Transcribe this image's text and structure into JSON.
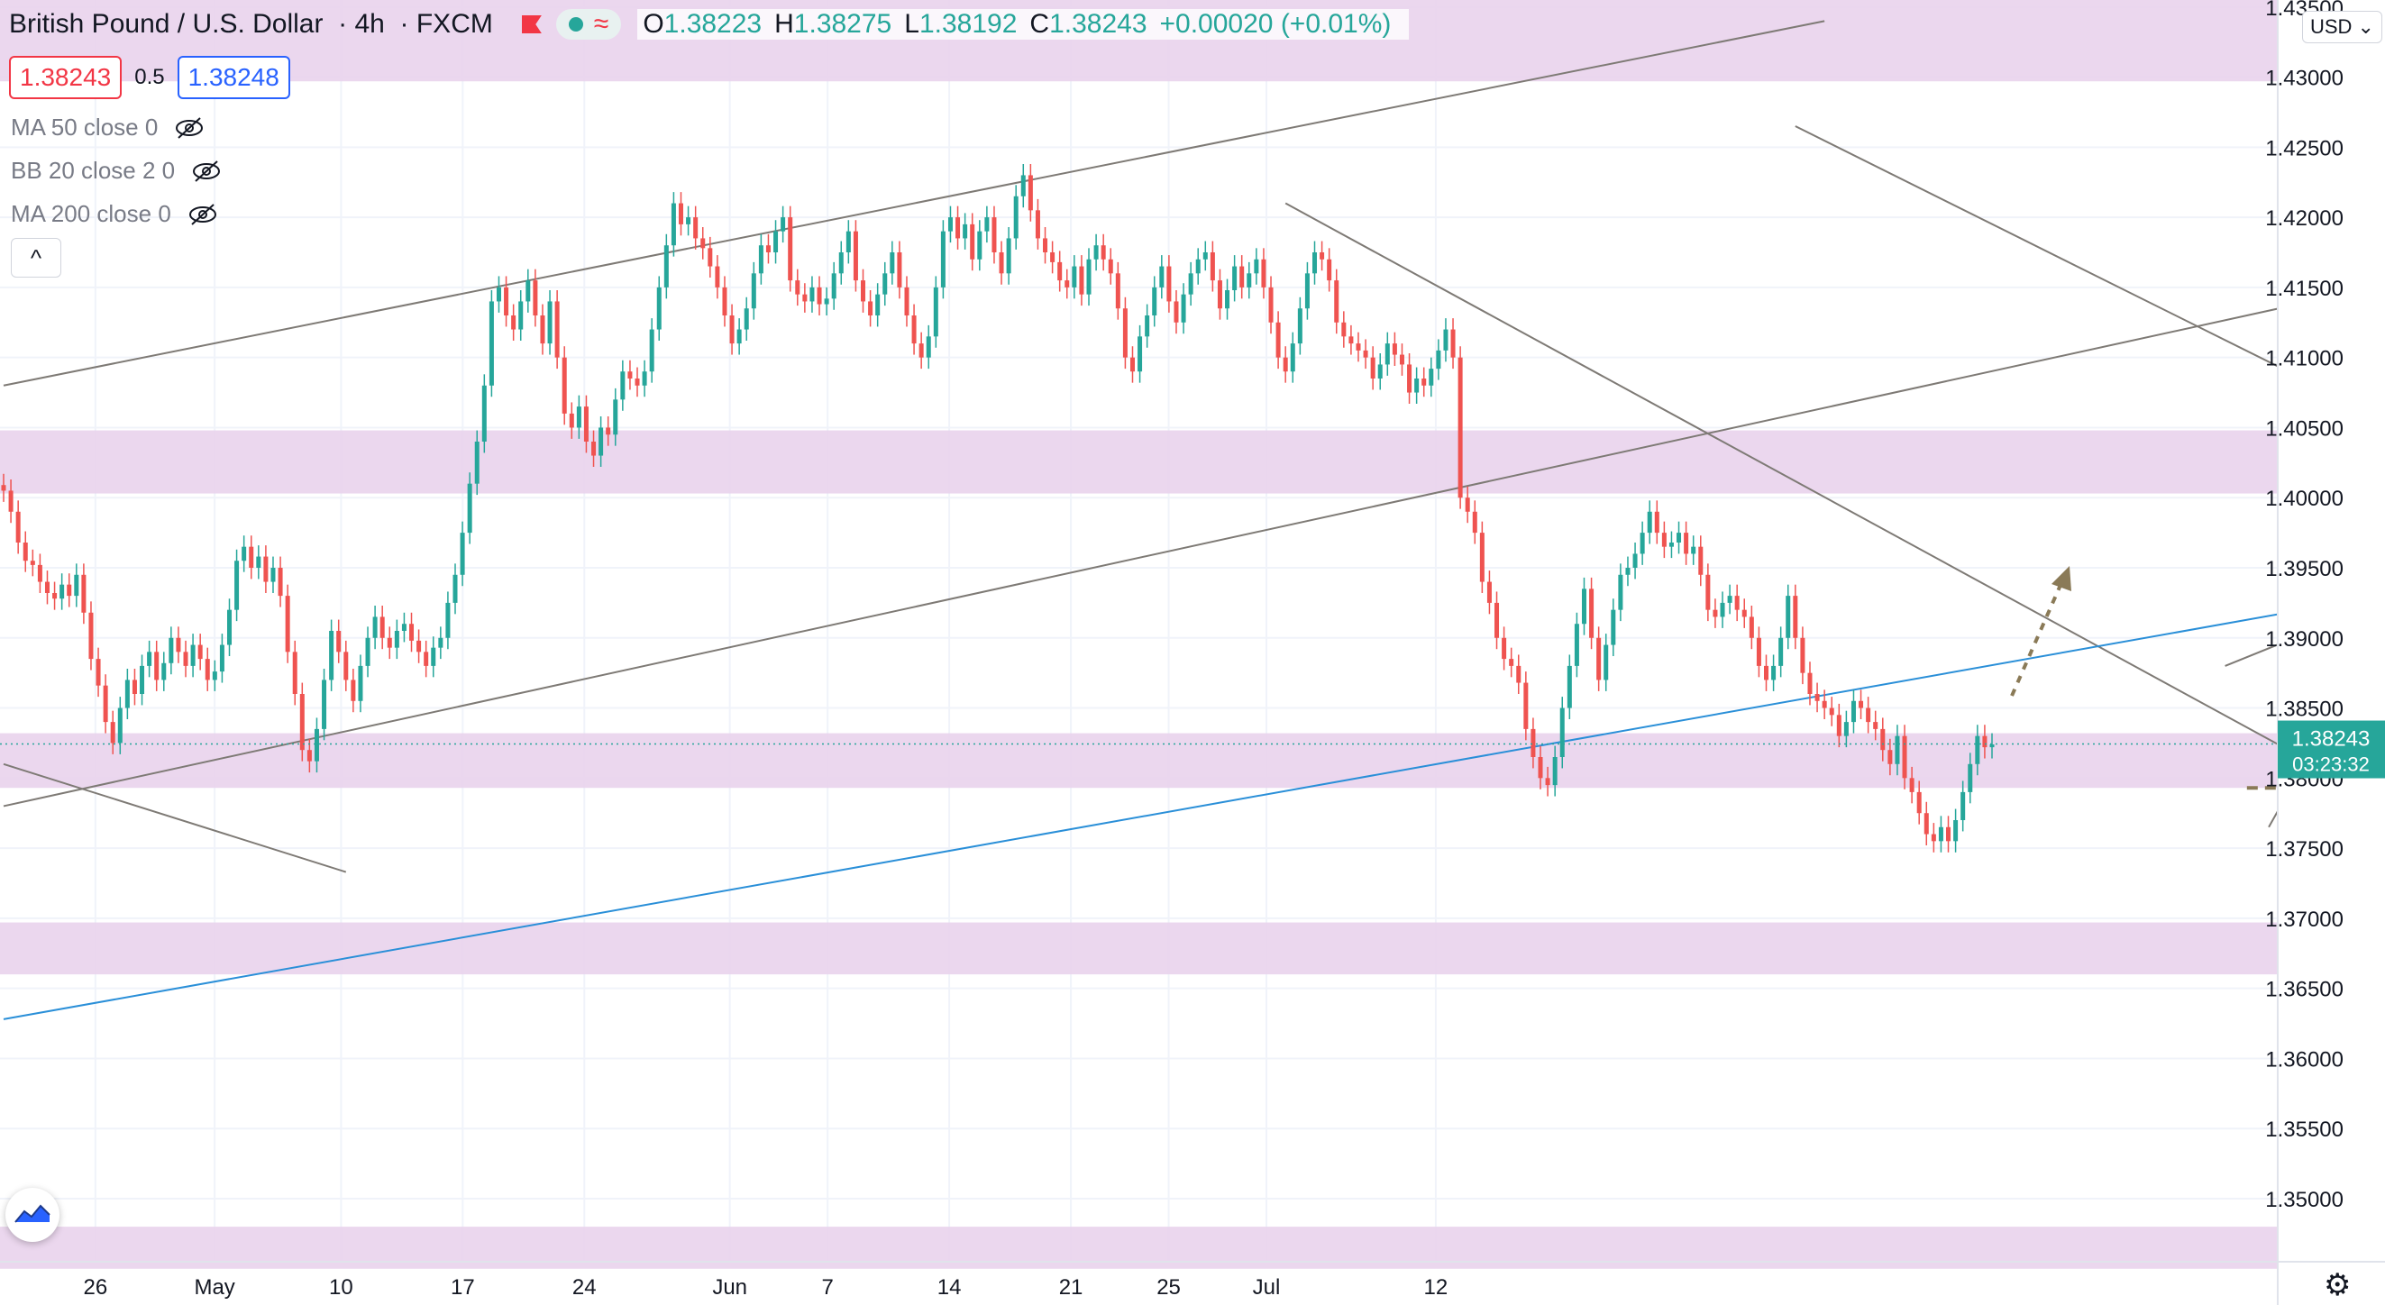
{
  "legend": {
    "symbol": "British Pound / U.S. Dollar",
    "interval": "4h",
    "source": "FXCM",
    "ohlc": [
      {
        "k": "O",
        "v": "1.38223"
      },
      {
        "k": "H",
        "v": "1.38275"
      },
      {
        "k": "L",
        "v": "1.38192"
      },
      {
        "k": "C",
        "v": "1.38243"
      },
      {
        "k": "",
        "v": "+0.00020 (+0.01%)"
      }
    ]
  },
  "prices": {
    "sell": "1.38243",
    "spread": "0.5",
    "buy": "1.38248"
  },
  "indicators": [
    "MA 50 close 0",
    "BB 20 close 2 0",
    "MA 200 close 0"
  ],
  "currency_label": "USD ⌄",
  "collapse_label": "^",
  "colors": {
    "up": "#26a69a",
    "down": "#ef5350",
    "zone": "#e9d3ec",
    "trend": "#7e7a75",
    "blue_line": "#2a8fd8",
    "target": "#8a7a57"
  },
  "chart_data": {
    "type": "candlestick",
    "ylim": [
      1.3455,
      1.4355
    ],
    "y_ticks": [
      "1.43500",
      "1.43000",
      "1.42500",
      "1.42000",
      "1.41500",
      "1.41000",
      "1.40500",
      "1.40000",
      "1.39500",
      "1.39000",
      "1.38500",
      "1.38000",
      "1.37500",
      "1.37000",
      "1.36500",
      "1.36000",
      "1.35500",
      "1.35000"
    ],
    "x_labels": [
      "26",
      "May",
      "10",
      "17",
      "24",
      "Jun",
      "7",
      "14",
      "21",
      "25",
      "Jul",
      "12"
    ],
    "last_price": "1.38243",
    "countdown": "03:23:32",
    "zones": [
      [
        1.4297,
        1.4355
      ],
      [
        1.4003,
        1.4048
      ],
      [
        1.3793,
        1.3832
      ],
      [
        1.366,
        1.3697
      ],
      [
        1.345,
        1.348
      ]
    ],
    "candles_close": [
      1.4005,
      1.399,
      1.3968,
      1.3955,
      1.3952,
      1.394,
      1.3932,
      1.3928,
      1.3938,
      1.393,
      1.3945,
      1.3918,
      1.3885,
      1.3866,
      1.384,
      1.3825,
      1.385,
      1.387,
      1.386,
      1.388,
      1.389,
      1.387,
      1.3882,
      1.39,
      1.389,
      1.388,
      1.3895,
      1.3885,
      1.387,
      1.3876,
      1.3895,
      1.392,
      1.3955,
      1.3965,
      1.395,
      1.3958,
      1.394,
      1.395,
      1.393,
      1.389,
      1.386,
      1.382,
      1.3812,
      1.3835,
      1.387,
      1.3905,
      1.389,
      1.387,
      1.3855,
      1.388,
      1.39,
      1.3915,
      1.39,
      1.3893,
      1.3905,
      1.391,
      1.3898,
      1.389,
      1.388,
      1.3893,
      1.39,
      1.3925,
      1.3945,
      1.3975,
      1.401,
      1.404,
      1.408,
      1.414,
      1.415,
      1.413,
      1.412,
      1.414,
      1.4155,
      1.413,
      1.411,
      1.414,
      1.41,
      1.406,
      1.405,
      1.4065,
      1.404,
      1.403,
      1.405,
      1.4045,
      1.407,
      1.409,
      1.4085,
      1.408,
      1.409,
      1.412,
      1.415,
      1.418,
      1.421,
      1.4195,
      1.42,
      1.4185,
      1.4178,
      1.4165,
      1.415,
      1.413,
      1.411,
      1.412,
      1.4135,
      1.416,
      1.418,
      1.4175,
      1.419,
      1.42,
      1.4155,
      1.4145,
      1.414,
      1.415,
      1.4138,
      1.4142,
      1.416,
      1.4175,
      1.419,
      1.4155,
      1.414,
      1.413,
      1.4145,
      1.416,
      1.4175,
      1.415,
      1.413,
      1.411,
      1.41,
      1.4115,
      1.415,
      1.419,
      1.42,
      1.4185,
      1.4195,
      1.417,
      1.419,
      1.42,
      1.4175,
      1.416,
      1.4185,
      1.4215,
      1.423,
      1.4205,
      1.4185,
      1.4175,
      1.4168,
      1.4155,
      1.415,
      1.4165,
      1.4145,
      1.417,
      1.418,
      1.417,
      1.416,
      1.4135,
      1.41,
      1.409,
      1.4115,
      1.413,
      1.415,
      1.4165,
      1.414,
      1.4125,
      1.4145,
      1.416,
      1.417,
      1.4175,
      1.4155,
      1.4135,
      1.4148,
      1.4165,
      1.415,
      1.416,
      1.417,
      1.415,
      1.4125,
      1.41,
      1.409,
      1.411,
      1.4135,
      1.416,
      1.4175,
      1.417,
      1.4155,
      1.4125,
      1.4115,
      1.411,
      1.4105,
      1.41,
      1.4085,
      1.4095,
      1.411,
      1.4102,
      1.4095,
      1.4075,
      1.4085,
      1.408,
      1.4092,
      1.4105,
      1.412,
      1.41,
      1.4,
      1.399,
      1.3975,
      1.394,
      1.3925,
      1.39,
      1.3885,
      1.388,
      1.3868,
      1.3835,
      1.3815,
      1.38,
      1.3795,
      1.3815,
      1.385,
      1.388,
      1.391,
      1.3935,
      1.39,
      1.387,
      1.3895,
      1.392,
      1.3945,
      1.395,
      1.396,
      1.3975,
      1.399,
      1.3975,
      1.3965,
      1.3968,
      1.3975,
      1.396,
      1.3965,
      1.3945,
      1.392,
      1.3915,
      1.3925,
      1.393,
      1.392,
      1.3915,
      1.39,
      1.388,
      1.387,
      1.388,
      1.39,
      1.393,
      1.39,
      1.3875,
      1.386,
      1.3855,
      1.385,
      1.3845,
      1.383,
      1.384,
      1.3855,
      1.385,
      1.384,
      1.3835,
      1.382,
      1.381,
      1.383,
      1.38,
      1.379,
      1.3775,
      1.376,
      1.3755,
      1.3765,
      1.3755,
      1.377,
      1.379,
      1.381,
      1.383,
      1.3822,
      1.3824
    ],
    "annotations": [
      {
        "type": "dashed",
        "y": 1.3997
      },
      {
        "type": "dashed",
        "y": 1.3793
      },
      {
        "type": "dashed",
        "y": 1.3749
      }
    ]
  }
}
